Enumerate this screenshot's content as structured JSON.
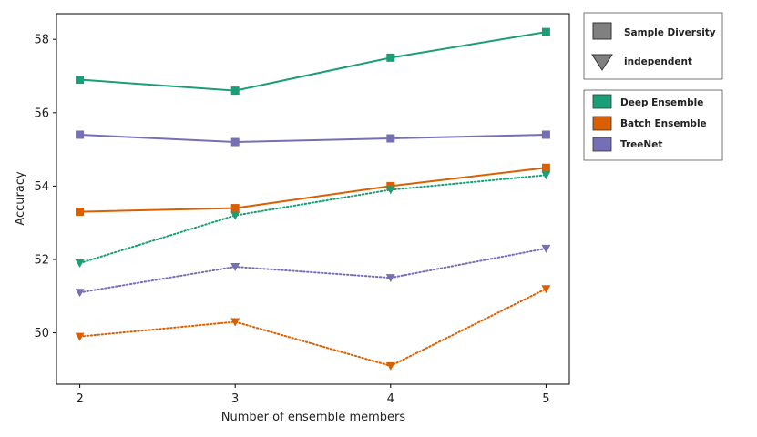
{
  "chart_data": {
    "type": "line",
    "title": "",
    "xlabel": "Number of ensemble members",
    "ylabel": "Accuracy",
    "x": [
      2,
      3,
      4,
      5
    ],
    "xticks": [
      "2",
      "3",
      "4",
      "5"
    ],
    "yticks": [
      "50",
      "52",
      "54",
      "56",
      "58"
    ],
    "xlim": [
      1.85,
      5.15
    ],
    "ylim": [
      48.6,
      58.7
    ],
    "series": [
      {
        "name": "Deep Ensemble",
        "method": "Sample Diversity",
        "values": [
          56.9,
          56.6,
          57.5,
          58.2
        ],
        "color": "#1b9e77"
      },
      {
        "name": "TreeNet",
        "method": "Sample Diversity",
        "values": [
          55.4,
          55.2,
          55.3,
          55.4
        ],
        "color": "#7570b3"
      },
      {
        "name": "Batch Ensemble",
        "method": "Sample Diversity",
        "values": [
          53.3,
          53.4,
          54.0,
          54.5
        ],
        "color": "#d95f02"
      },
      {
        "name": "Deep Ensemble",
        "method": "independent",
        "values": [
          51.9,
          53.2,
          53.9,
          54.3
        ],
        "color": "#1b9e77"
      },
      {
        "name": "TreeNet",
        "method": "independent",
        "values": [
          51.1,
          51.8,
          51.5,
          52.3
        ],
        "color": "#7570b3"
      },
      {
        "name": "Batch Ensemble",
        "method": "independent",
        "values": [
          49.9,
          50.3,
          49.1,
          51.2
        ],
        "color": "#d95f02"
      }
    ],
    "legend_methods": [
      {
        "label": "Sample Diversity",
        "marker": "square"
      },
      {
        "label": "independent",
        "marker": "triangle"
      }
    ],
    "legend_models": [
      {
        "label": "Deep Ensemble",
        "color": "#1b9e77"
      },
      {
        "label": "Batch Ensemble",
        "color": "#d95f02"
      },
      {
        "label": "TreeNet",
        "color": "#7570b3"
      }
    ],
    "legend_placement": "outside-right"
  }
}
